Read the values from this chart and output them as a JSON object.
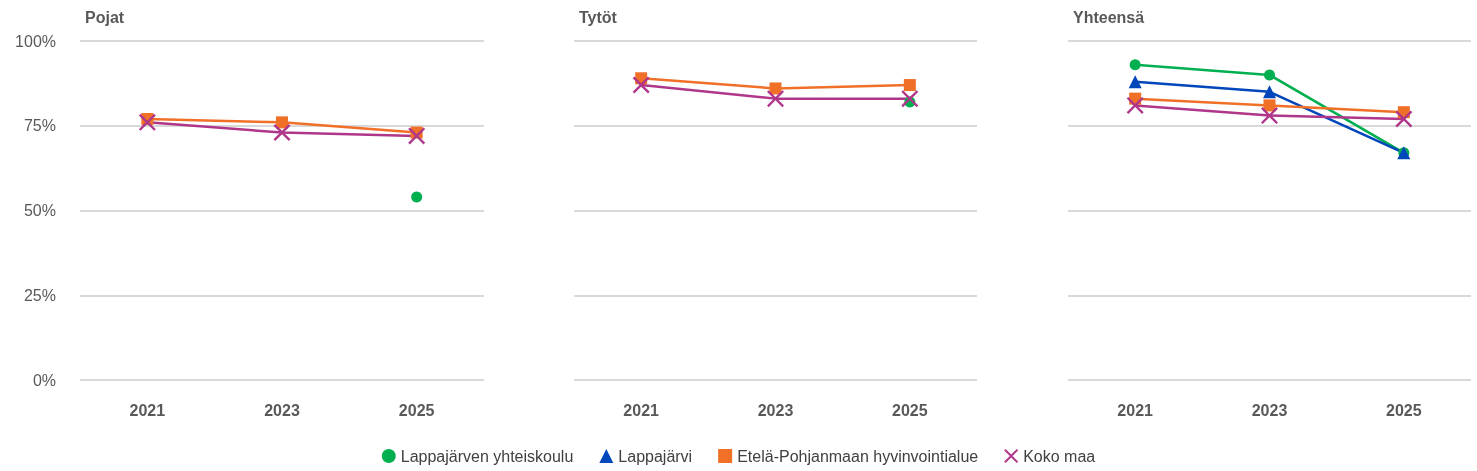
{
  "chart_data": [
    {
      "type": "line",
      "title": "Pojat",
      "categories": [
        "2021",
        "2023",
        "2025"
      ],
      "ylim": [
        0,
        100
      ],
      "yticks": [
        {
          "value": 0,
          "label": "0%"
        },
        {
          "value": 25,
          "label": "25%"
        },
        {
          "value": 50,
          "label": "50%"
        },
        {
          "value": 75,
          "label": "75%"
        },
        {
          "value": 100,
          "label": "100%"
        }
      ],
      "grid": "y",
      "series": [
        {
          "color": "#00b050",
          "marker": "circle",
          "values": [
            null,
            null,
            54
          ]
        },
        {
          "color": "#f07028",
          "marker": "square",
          "values": [
            77,
            76,
            73
          ]
        },
        {
          "color": "#b0368a",
          "marker": "cross",
          "values": [
            76,
            73,
            72
          ]
        }
      ]
    },
    {
      "type": "line",
      "title": "Tytöt",
      "categories": [
        "2021",
        "2023",
        "2025"
      ],
      "ylim": [
        0,
        100
      ],
      "yticks": [
        0,
        25,
        50,
        75,
        100
      ],
      "grid": "y",
      "tick_labels": "x",
      "legend": "bottom",
      "series": [
        {
          "name": "Lappajärven yhteiskoulu",
          "color": "#00b050",
          "marker": "circle",
          "values": [
            null,
            null,
            82
          ]
        },
        {
          "name": "Lappajärvi",
          "color": "#0047bb",
          "marker": "triangle",
          "values": [
            null,
            null,
            null
          ]
        },
        {
          "name": "Etelä-Pohjanmaan hyvinvointialue",
          "color": "#f07028",
          "marker": "square",
          "values": [
            89,
            86,
            87
          ]
        },
        {
          "name": "Koko maa",
          "color": "#b0368a",
          "marker": "cross",
          "values": [
            87,
            83,
            83
          ]
        }
      ]
    },
    {
      "type": "line",
      "title": "Yhteensä",
      "categories": [
        "2021",
        "2023",
        "2025"
      ],
      "ylim": [
        0,
        100
      ],
      "yticks": [
        0,
        25,
        50,
        75,
        100
      ],
      "grid": "y",
      "tick_labels": "x",
      "series": [
        {
          "color": "#00b050",
          "marker": "circle",
          "values": [
            93,
            90,
            67
          ]
        },
        {
          "color": "#0047bb",
          "marker": "triangle",
          "values": [
            88,
            85,
            67
          ]
        },
        {
          "color": "#f07028",
          "marker": "square",
          "values": [
            83,
            81,
            79
          ]
        },
        {
          "color": "#b0368a",
          "marker": "cross",
          "values": [
            81,
            78,
            77
          ]
        }
      ]
    }
  ]
}
